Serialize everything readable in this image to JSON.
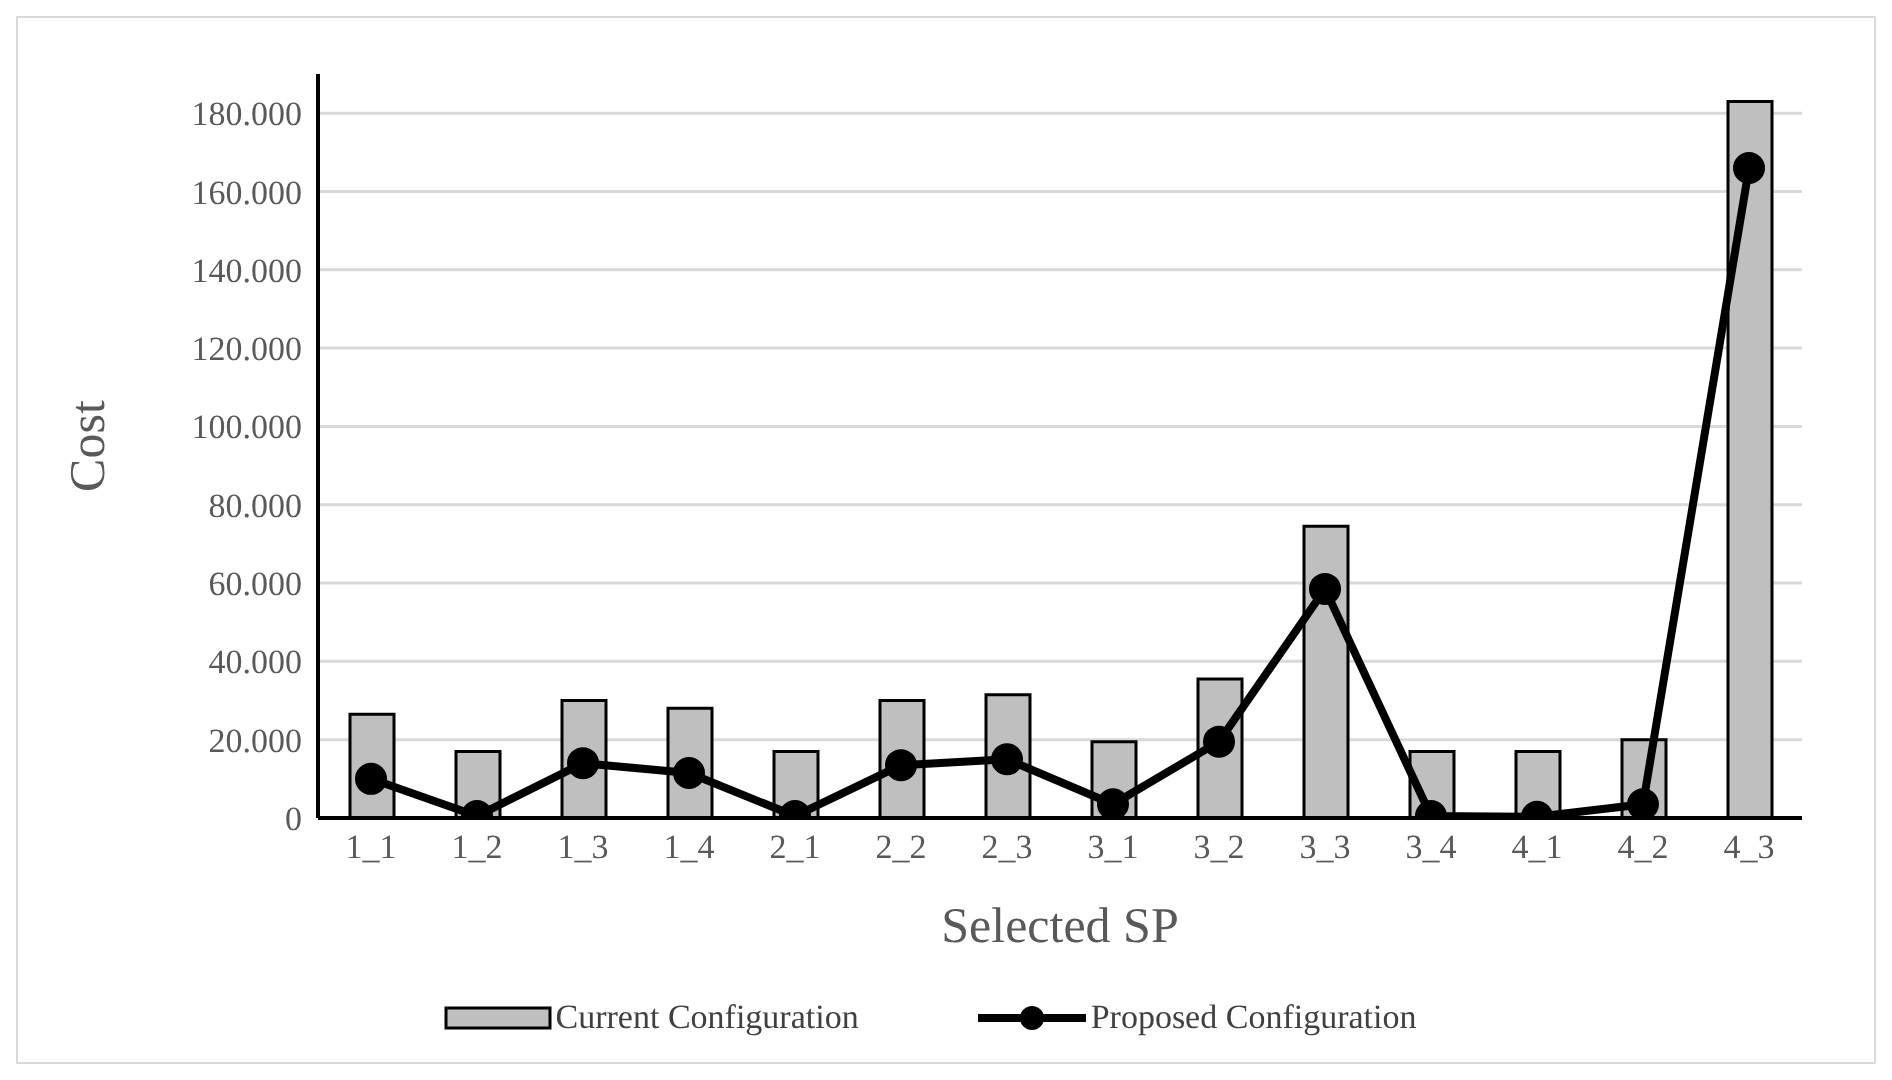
{
  "chart_data": {
    "type": "bar",
    "xlabel": "Selected SP",
    "ylabel": "Cost",
    "categories": [
      "1_1",
      "1_2",
      "1_3",
      "1_4",
      "2_1",
      "2_2",
      "2_3",
      "3_1",
      "3_2",
      "3_3",
      "3_4",
      "4_1",
      "4_2",
      "4_3"
    ],
    "series": [
      {
        "name": "Current Configuration",
        "color": "#bfbfbf",
        "values": [
          26500,
          17000,
          30000,
          28000,
          17000,
          30000,
          31500,
          19500,
          35500,
          74500,
          17000,
          17000,
          20000,
          183000
        ]
      },
      {
        "name": "Proposed Configuration",
        "type": "line",
        "color": "#000000",
        "values": [
          10000,
          500,
          14000,
          11500,
          500,
          13500,
          15000,
          3500,
          19500,
          58500,
          500,
          300,
          3500,
          166000
        ]
      }
    ],
    "ylim": [
      0,
      190000
    ],
    "yticks": [
      0,
      {
        "value": 20000,
        "label": "20.000"
      },
      {
        "value": 40000,
        "label": "40.000"
      },
      {
        "value": 60000,
        "label": "60.000"
      },
      {
        "value": 80000,
        "label": "80.000"
      },
      {
        "value": 100000,
        "label": "100.000"
      },
      {
        "value": 120000,
        "label": "120.000"
      },
      {
        "value": 140000,
        "label": "140.000"
      },
      {
        "value": 160000,
        "label": "160.000"
      },
      {
        "value": 180000,
        "label": "180.000"
      }
    ],
    "grid": "y",
    "legend": "bottom",
    "marker": "circle"
  }
}
